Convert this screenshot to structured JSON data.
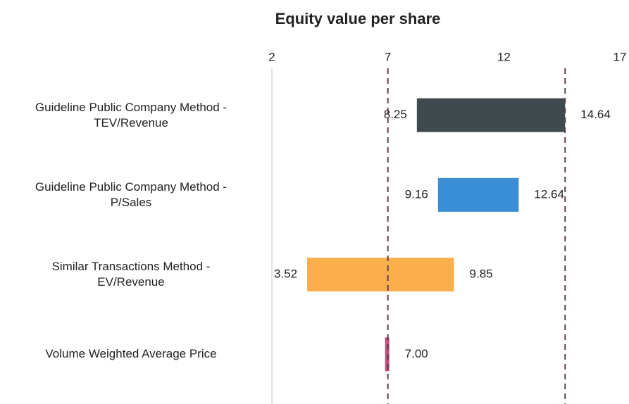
{
  "chart_data": {
    "type": "range_bar",
    "title": "Equity value per share",
    "xlim": [
      2,
      17
    ],
    "xticks": [
      2,
      7,
      12,
      17
    ],
    "reference_lines": [
      7,
      14.64
    ],
    "rows": [
      {
        "category": "Guideline Public Company Method -\nTEV/Revenue",
        "low": 8.25,
        "high": 14.64,
        "color": "#3f4a4e"
      },
      {
        "category": "Guideline Public Company Method -\nP/Sales",
        "low": 9.16,
        "high": 12.64,
        "color": "#3a8ed6"
      },
      {
        "category": "Similar Transactions Method -\nEV/Revenue",
        "low": 3.52,
        "high": 9.85,
        "color": "#fbae4c"
      },
      {
        "category": "Volume Weighted Average Price",
        "value": 7,
        "value_label": "7.00",
        "color": "#c44d7c"
      }
    ]
  }
}
